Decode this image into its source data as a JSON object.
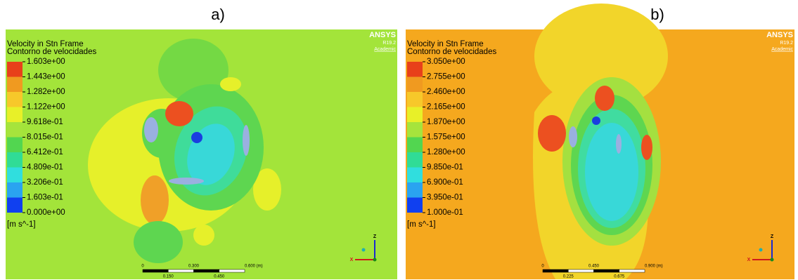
{
  "panels": [
    {
      "label": "a)",
      "title": "Velocity in Stn Frame",
      "subtitle": "Contorno de velocidades",
      "legend_labels": [
        "1.603e+00",
        "1.443e+00",
        "1.282e+00",
        "1.122e+00",
        "9.618e-01",
        "8.015e-01",
        "6.412e-01",
        "4.809e-01",
        "3.206e-01",
        "1.603e-01",
        "0.000e+00"
      ],
      "unit": "[m s^-1]",
      "logo": "ANSYS",
      "version": "R19.2",
      "edition": "Academic",
      "scale_top": [
        "0",
        "0.300",
        "0.600 (m)"
      ],
      "scale_bottom": [
        "0.150",
        "0.450"
      ],
      "axes": [
        "Z",
        "X"
      ]
    },
    {
      "label": "b)",
      "title": "Velocity in Stn Frame",
      "subtitle": "Contorno de velocidades",
      "legend_labels": [
        "3.050e+00",
        "2.755e+00",
        "2.460e+00",
        "2.165e+00",
        "1.870e+00",
        "1.575e+00",
        "1.280e+00",
        "9.850e-01",
        "6.900e-01",
        "3.950e-01",
        "1.000e-01"
      ],
      "unit": "[m s^-1]",
      "logo": "ANSYS",
      "version": "R19.2",
      "edition": "Academic",
      "scale_top": [
        "0",
        "0.450",
        "0.900 (m)"
      ],
      "scale_bottom": [
        "0.225",
        "0.675"
      ],
      "axes": [
        "Z",
        "X"
      ]
    }
  ]
}
